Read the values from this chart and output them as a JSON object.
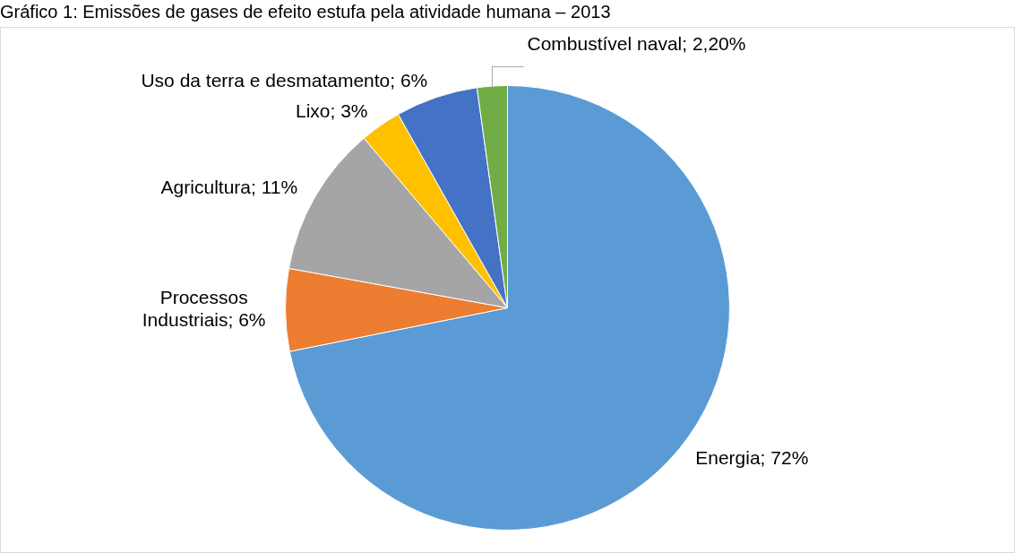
{
  "chart_data": {
    "type": "pie",
    "title": "Gráfico 1: Emissões de gases de efeito estufa pela atividade humana – 2013",
    "categories": [
      "Energia",
      "Processos Industriais",
      "Agricultura",
      "Lixo",
      "Uso da terra e desmatamento",
      "Combustível naval"
    ],
    "values": [
      72,
      6,
      11,
      3,
      6,
      2.2
    ],
    "value_labels": [
      "72%",
      "6%",
      "11%",
      "3%",
      "6%",
      "2,20%"
    ],
    "colors": [
      "#5b9bd5",
      "#ed7d31",
      "#a5a5a5",
      "#ffc000",
      "#4472c4",
      "#70ad47"
    ],
    "legend": false
  }
}
